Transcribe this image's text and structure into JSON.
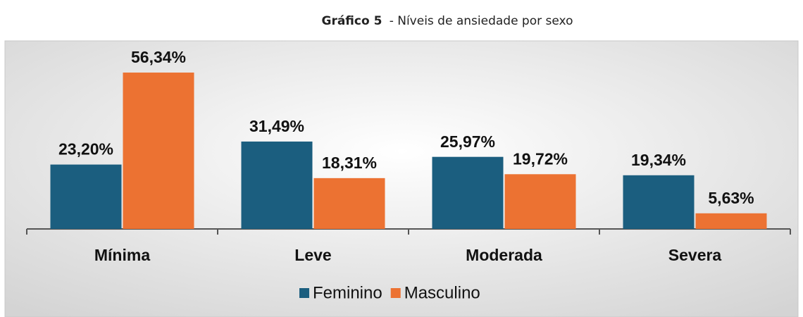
{
  "chart_data": {
    "type": "bar",
    "title": "Gráfico 5",
    "subtitle": "- Níveis de ansiedade por sexo",
    "categories": [
      "Mínima",
      "Leve",
      "Moderada",
      "Severa"
    ],
    "series": [
      {
        "name": "Feminino",
        "color": "#1b5e7f",
        "values": [
          23.2,
          31.49,
          25.97,
          19.34
        ],
        "value_labels": [
          "23,20%",
          "31,49%",
          "25,97%",
          "19,34%"
        ]
      },
      {
        "name": "Masculino",
        "color": "#ec7232",
        "values": [
          56.34,
          18.31,
          19.72,
          5.63
        ],
        "value_labels": [
          "56,34%",
          "18,31%",
          "19,72%",
          "5,63%"
        ]
      }
    ],
    "legend": "bottom"
  }
}
